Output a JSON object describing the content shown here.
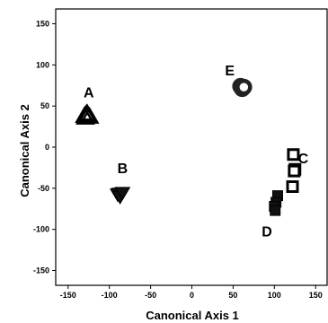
{
  "chart_data": {
    "type": "scatter",
    "xlabel": "Canonical Axis  1",
    "ylabel": "Canonical Axis  2",
    "xlim": [
      -165,
      165
    ],
    "ylim": [
      -168,
      168
    ],
    "xticks": [
      -150,
      -100,
      -50,
      0,
      50,
      100,
      150
    ],
    "yticks": [
      150,
      100,
      50,
      0,
      -50,
      -100,
      -150
    ],
    "grid": false,
    "groups": [
      {
        "name": "A",
        "marker": "triangle-up-hollow",
        "points": [
          [
            -130,
            38
          ],
          [
            -128,
            40
          ],
          [
            -126,
            39
          ],
          [
            -129,
            36
          ],
          [
            -124,
            37
          ],
          [
            -127,
            41
          ]
        ],
        "label_at": [
          -125,
          67
        ]
      },
      {
        "name": "B",
        "marker": "triangle-down-filled",
        "points": [
          [
            -88,
            -56
          ],
          [
            -86,
            -58
          ],
          [
            -90,
            -57
          ],
          [
            -87,
            -60
          ],
          [
            -84,
            -55
          ]
        ],
        "label_at": [
          -84,
          -25
        ]
      },
      {
        "name": "C",
        "marker": "square-hollow",
        "points": [
          [
            123,
            -9
          ],
          [
            125,
            -27
          ],
          [
            122,
            -48
          ],
          [
            124,
            -29
          ]
        ],
        "label_at": [
          135,
          -13
        ]
      },
      {
        "name": "D",
        "marker": "square-filled",
        "points": [
          [
            104,
            -59
          ],
          [
            102,
            -67
          ],
          [
            100,
            -72
          ],
          [
            101,
            -77
          ]
        ],
        "label_at": [
          91,
          -102
        ]
      },
      {
        "name": "E",
        "marker": "circle-ring",
        "points": [
          [
            60,
            73
          ],
          [
            62,
            72
          ],
          [
            59,
            74
          ],
          [
            61,
            71
          ],
          [
            63,
            73
          ]
        ],
        "label_at": [
          46,
          94
        ]
      }
    ]
  }
}
